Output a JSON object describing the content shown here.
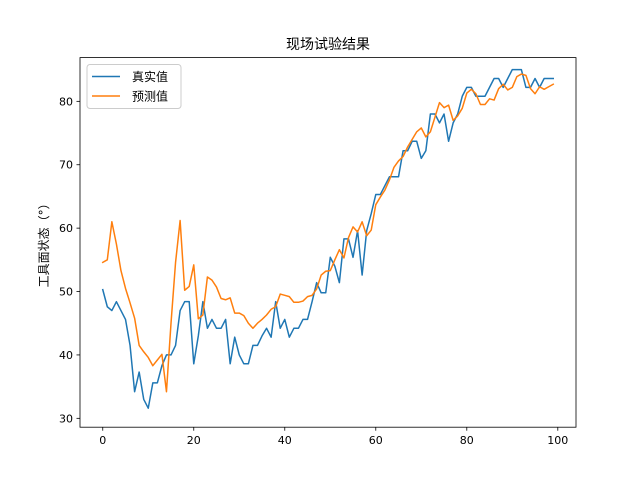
{
  "chart_data": {
    "type": "line",
    "title": "现场试验结果",
    "xlabel": "",
    "ylabel": "工具面状态（°）",
    "xlim": [
      -5,
      104
    ],
    "ylim": [
      28.6,
      86.9
    ],
    "xticks": [
      0,
      20,
      40,
      60,
      80,
      100
    ],
    "yticks": [
      30,
      40,
      50,
      60,
      70,
      80
    ],
    "legend_position": "top-left",
    "grid": false,
    "series": [
      {
        "name": "真实值",
        "color": "#1f77b4",
        "x": [
          0,
          1,
          2,
          3,
          4,
          5,
          6,
          7,
          8,
          9,
          10,
          11,
          12,
          13,
          14,
          15,
          16,
          17,
          18,
          19,
          20,
          21,
          22,
          23,
          24,
          25,
          26,
          27,
          28,
          29,
          30,
          31,
          32,
          33,
          34,
          35,
          36,
          37,
          38,
          39,
          40,
          41,
          42,
          43,
          44,
          45,
          46,
          47,
          48,
          49,
          50,
          51,
          52,
          53,
          54,
          55,
          56,
          57,
          58,
          59,
          60,
          61,
          62,
          63,
          64,
          65,
          66,
          67,
          68,
          69,
          70,
          71,
          72,
          73,
          74,
          75,
          76,
          77,
          78,
          79,
          80,
          81,
          82,
          83,
          84,
          85,
          86,
          87,
          88,
          89,
          90,
          91,
          92,
          93,
          94,
          95,
          96,
          97,
          98,
          99
        ],
        "values": [
          50.3,
          47.6,
          47.0,
          48.4,
          47.0,
          45.6,
          41.5,
          34.2,
          37.3,
          33.0,
          31.6,
          35.6,
          35.6,
          38.3,
          40.0,
          40.0,
          41.5,
          47.0,
          48.4,
          48.4,
          38.6,
          43.0,
          48.4,
          44.2,
          45.6,
          44.2,
          44.2,
          45.6,
          38.6,
          42.8,
          40.0,
          38.6,
          38.6,
          41.5,
          41.5,
          43.0,
          44.2,
          42.8,
          48.4,
          44.2,
          45.6,
          42.8,
          44.2,
          44.2,
          45.6,
          45.6,
          48.4,
          51.4,
          49.8,
          49.8,
          55.4,
          54.0,
          51.4,
          58.3,
          58.3,
          55.4,
          59.6,
          52.6,
          59.6,
          62.3,
          65.3,
          65.3,
          66.7,
          68.1,
          68.1,
          68.1,
          72.2,
          72.2,
          73.7,
          73.7,
          71.0,
          72.2,
          78.0,
          78.0,
          76.6,
          78.0,
          73.7,
          76.6,
          78.0,
          80.8,
          82.2,
          82.2,
          80.8,
          80.8,
          80.8,
          82.2,
          83.6,
          83.6,
          82.2,
          83.6,
          85.0,
          85.0,
          85.0,
          82.2,
          82.2,
          83.6,
          82.2,
          83.6,
          83.6,
          83.6
        ]
      },
      {
        "name": "预测值",
        "color": "#ff7f0e",
        "x": [
          0,
          1,
          2,
          3,
          4,
          5,
          6,
          7,
          8,
          9,
          10,
          11,
          12,
          13,
          14,
          15,
          16,
          17,
          18,
          19,
          20,
          21,
          22,
          23,
          24,
          25,
          26,
          27,
          28,
          29,
          30,
          31,
          32,
          33,
          34,
          35,
          36,
          37,
          38,
          39,
          40,
          41,
          42,
          43,
          44,
          45,
          46,
          47,
          48,
          49,
          50,
          51,
          52,
          53,
          54,
          55,
          56,
          57,
          58,
          59,
          60,
          61,
          62,
          63,
          64,
          65,
          66,
          67,
          68,
          69,
          70,
          71,
          72,
          73,
          74,
          75,
          76,
          77,
          78,
          79,
          80,
          81,
          82,
          83,
          84,
          85,
          86,
          87,
          88,
          89,
          90,
          91,
          92,
          93,
          94,
          95,
          96,
          97,
          98,
          99
        ],
        "values": [
          54.6,
          55.0,
          61.0,
          57.5,
          53.3,
          50.5,
          48.2,
          45.8,
          41.5,
          40.5,
          39.6,
          38.3,
          39.2,
          40.1,
          34.2,
          45.0,
          54.6,
          61.2,
          50.2,
          50.8,
          54.2,
          45.7,
          46.3,
          52.3,
          51.8,
          50.7,
          48.9,
          48.7,
          49.0,
          46.6,
          46.6,
          46.2,
          45.0,
          44.2,
          45.0,
          45.6,
          46.3,
          47.2,
          47.6,
          49.6,
          49.4,
          49.2,
          48.3,
          48.3,
          48.5,
          49.2,
          49.4,
          50.4,
          52.6,
          53.2,
          53.3,
          55.0,
          56.6,
          55.3,
          58.5,
          60.2,
          59.4,
          61.0,
          58.8,
          59.7,
          63.7,
          64.9,
          66.0,
          67.6,
          69.6,
          70.6,
          71.3,
          72.8,
          74.0,
          75.2,
          75.8,
          74.4,
          75.2,
          77.5,
          79.8,
          79.0,
          79.4,
          77.0,
          77.7,
          78.9,
          81.3,
          81.9,
          81.2,
          79.5,
          79.5,
          80.4,
          80.2,
          82.0,
          82.7,
          81.8,
          82.2,
          83.9,
          84.3,
          84.1,
          82.0,
          81.2,
          82.3,
          81.9,
          82.3,
          82.7
        ]
      }
    ]
  }
}
